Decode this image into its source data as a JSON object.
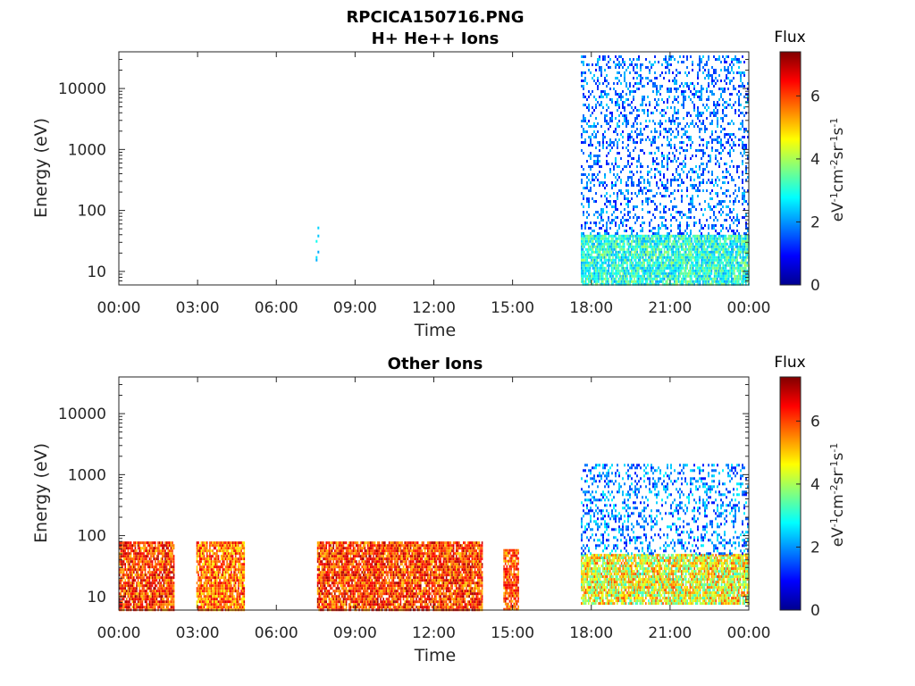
{
  "figure_title": "RPCICA150716.PNG",
  "chart_data": [
    {
      "type": "heatmap",
      "title": "H+ He++ Ions",
      "xlabel": "Time",
      "ylabel": "Energy (eV)",
      "x_ticks": [
        "00:00",
        "03:00",
        "06:00",
        "09:00",
        "12:00",
        "15:00",
        "18:00",
        "21:00",
        "00:00"
      ],
      "x_range_hours": [
        0,
        24
      ],
      "y_scale": "log",
      "y_range": [
        6,
        40000
      ],
      "y_ticks": [
        10,
        100,
        1000,
        10000
      ],
      "y_tick_labels": [
        "10",
        "100",
        "1000",
        "10000"
      ],
      "colorbar": {
        "label": "Flux",
        "unit": "eV-1cm-2sr-1s-1",
        "range": [
          0,
          7.4
        ],
        "ticks": [
          0,
          2,
          4,
          6
        ],
        "colormap": "jet"
      },
      "regions": [
        {
          "start_h": 7.5,
          "end_h": 7.6,
          "emin": 12,
          "emax": 60,
          "flux_min": 2,
          "flux_max": 3
        },
        {
          "start_h": 17.6,
          "end_h": 24,
          "emin": 6,
          "emax": 40,
          "flux_min": 2,
          "flux_max": 4
        },
        {
          "start_h": 17.6,
          "end_h": 24,
          "emin": 40,
          "emax": 35000,
          "flux_min": 1,
          "flux_max": 2.5
        }
      ]
    },
    {
      "type": "heatmap",
      "title": "Other Ions",
      "xlabel": "Time",
      "ylabel": "Energy (eV)",
      "x_ticks": [
        "00:00",
        "03:00",
        "06:00",
        "09:00",
        "12:00",
        "15:00",
        "18:00",
        "21:00",
        "00:00"
      ],
      "x_range_hours": [
        0,
        24
      ],
      "y_scale": "log",
      "y_range": [
        6,
        40000
      ],
      "y_ticks": [
        10,
        100,
        1000,
        10000
      ],
      "y_tick_labels": [
        "10",
        "100",
        "1000",
        "10000"
      ],
      "colorbar": {
        "label": "Flux",
        "unit": "eV-1cm-2sr-1s-1",
        "range": [
          0,
          7.4
        ],
        "ticks": [
          0,
          2,
          4,
          6
        ],
        "colormap": "jet"
      },
      "regions": [
        {
          "start_h": 0.0,
          "end_h": 2.1,
          "emin": 6,
          "emax": 80,
          "flux_min": 5,
          "flux_max": 7.2
        },
        {
          "start_h": 2.95,
          "end_h": 4.8,
          "emin": 6,
          "emax": 80,
          "flux_min": 4.5,
          "flux_max": 6.8
        },
        {
          "start_h": 7.55,
          "end_h": 13.85,
          "emin": 6,
          "emax": 80,
          "flux_min": 5,
          "flux_max": 7.2
        },
        {
          "start_h": 14.65,
          "end_h": 15.2,
          "emin": 6,
          "emax": 60,
          "flux_min": 5,
          "flux_max": 6.8
        },
        {
          "start_h": 17.6,
          "end_h": 24,
          "emin": 8,
          "emax": 50,
          "flux_min": 3,
          "flux_max": 6
        },
        {
          "start_h": 17.6,
          "end_h": 24,
          "emin": 50,
          "emax": 1500,
          "flux_min": 1,
          "flux_max": 2.8
        }
      ]
    }
  ]
}
